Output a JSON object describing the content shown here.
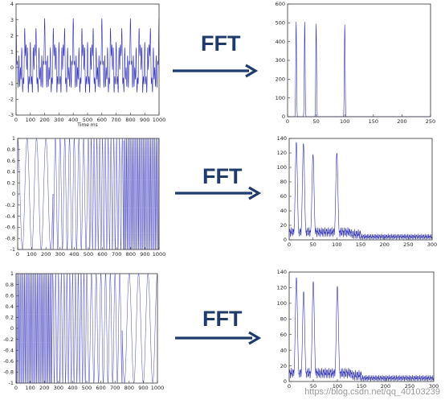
{
  "arrow_label": "FFT",
  "watermark": "https://blog.csdn.net/qq_40103239",
  "colors": {
    "signal": "#2f2fb8",
    "axis": "#333333",
    "arrow": "#1f3b6e"
  },
  "chart_data": [
    {
      "type": "line",
      "panel": "row1-time",
      "xlabel": "Time ms",
      "xlim": [
        0,
        1000
      ],
      "ylim": [
        -3,
        4
      ],
      "xticks": [
        0,
        100,
        200,
        300,
        400,
        500,
        600,
        700,
        800,
        900,
        1000
      ],
      "yticks": [
        -3,
        -2,
        -1,
        0,
        1,
        2,
        3,
        4
      ],
      "signal": {
        "kind": "sum",
        "components": [
          {
            "freq_hz": 15,
            "amp": 1
          },
          {
            "freq_hz": 30,
            "amp": 1
          },
          {
            "freq_hz": 50,
            "amp": 1
          },
          {
            "freq_hz": 100,
            "amp": 1
          }
        ]
      }
    },
    {
      "type": "line",
      "panel": "row1-fft",
      "xlim": [
        0,
        250
      ],
      "ylim": [
        0,
        600
      ],
      "xticks": [
        0,
        50,
        100,
        150,
        200,
        250
      ],
      "yticks": [
        0,
        100,
        200,
        300,
        400,
        500,
        600
      ],
      "peaks": [
        {
          "x": 15,
          "y": 505,
          "inner": 380
        },
        {
          "x": 30,
          "y": 505,
          "inner": 380
        },
        {
          "x": 50,
          "y": 495,
          "inner": 380
        },
        {
          "x": 100,
          "y": 490,
          "inner": 375
        }
      ]
    },
    {
      "type": "line",
      "panel": "row2-time",
      "xlim": [
        0,
        1000
      ],
      "ylim": [
        -1,
        1
      ],
      "xticks": [
        0,
        100,
        200,
        300,
        400,
        500,
        600,
        700,
        800,
        900,
        1000
      ],
      "yticks": [
        -1,
        -0.8,
        -0.6,
        -0.4,
        -0.2,
        0,
        0.2,
        0.4,
        0.6,
        0.8,
        1
      ],
      "signal": {
        "kind": "segments",
        "segments": [
          {
            "start": 0,
            "end": 250,
            "freq_hz": 15
          },
          {
            "start": 250,
            "end": 500,
            "freq_hz": 30
          },
          {
            "start": 500,
            "end": 750,
            "freq_hz": 50
          },
          {
            "start": 750,
            "end": 1000,
            "freq_hz": 100
          }
        ]
      }
    },
    {
      "type": "line",
      "panel": "row2-fft",
      "xlim": [
        0,
        300
      ],
      "ylim": [
        0,
        140
      ],
      "xticks": [
        0,
        50,
        100,
        150,
        200,
        250,
        300
      ],
      "yticks": [
        0,
        20,
        40,
        60,
        80,
        100,
        120,
        140
      ],
      "peaks": [
        {
          "x": 15,
          "y": 135,
          "inner": 110
        },
        {
          "x": 30,
          "y": 133,
          "inner": 110
        },
        {
          "x": 50,
          "y": 118,
          "inner": 100
        },
        {
          "x": 100,
          "y": 120,
          "inner": 100
        }
      ],
      "noise_floor": 4
    },
    {
      "type": "line",
      "panel": "row3-time",
      "xlim": [
        0,
        1000
      ],
      "ylim": [
        -1,
        1
      ],
      "xticks": [
        0,
        100,
        200,
        300,
        400,
        500,
        600,
        700,
        800,
        900,
        1000
      ],
      "yticks": [
        -1,
        -0.8,
        -0.6,
        -0.4,
        -0.2,
        0,
        0.2,
        0.4,
        0.6,
        0.8,
        1
      ],
      "signal": {
        "kind": "segments",
        "segments": [
          {
            "start": 0,
            "end": 250,
            "freq_hz": 100
          },
          {
            "start": 250,
            "end": 500,
            "freq_hz": 50
          },
          {
            "start": 500,
            "end": 750,
            "freq_hz": 30
          },
          {
            "start": 750,
            "end": 1000,
            "freq_hz": 15
          }
        ]
      }
    },
    {
      "type": "line",
      "panel": "row3-fft",
      "xlim": [
        0,
        300
      ],
      "ylim": [
        0,
        140
      ],
      "xticks": [
        0,
        50,
        100,
        150,
        200,
        250,
        300
      ],
      "yticks": [
        0,
        20,
        40,
        60,
        80,
        100,
        120,
        140
      ],
      "peaks": [
        {
          "x": 15,
          "y": 133,
          "inner": 110
        },
        {
          "x": 30,
          "y": 115,
          "inner": 95
        },
        {
          "x": 50,
          "y": 128,
          "inner": 105
        },
        {
          "x": 100,
          "y": 122,
          "inner": 100
        }
      ],
      "noise_floor": 4
    }
  ]
}
